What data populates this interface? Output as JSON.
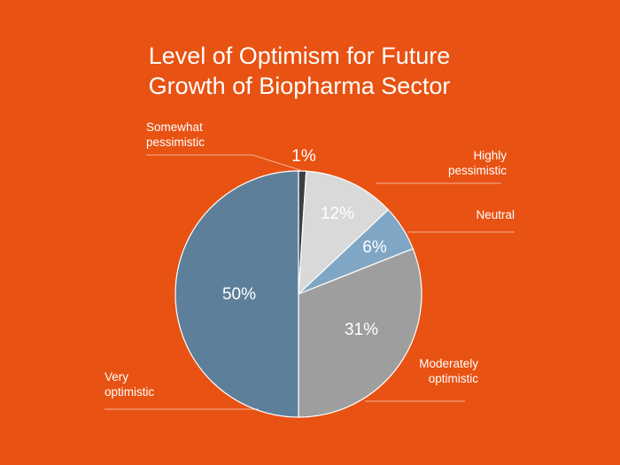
{
  "background": "#E85212",
  "chart_data": {
    "type": "pie",
    "title": [
      "Level of Optimism for Future",
      "Growth of Biopharma Sector"
    ],
    "categories": [
      "Somewhat pessimistic",
      "Highly pessimistic",
      "Neutral",
      "Moderately optimistic",
      "Very optimistic"
    ],
    "values": [
      1,
      12,
      6,
      31,
      50
    ],
    "value_labels": [
      "1%",
      "12%",
      "6%",
      "31%",
      "50%"
    ],
    "category_label_lines": [
      [
        "Somewhat",
        "pessimistic"
      ],
      [
        "Highly",
        "pessimistic"
      ],
      [
        "Neutral"
      ],
      [
        "Moderately",
        "optimistic"
      ],
      [
        "Very",
        "optimistic"
      ]
    ],
    "colors": [
      "#3A3F45",
      "#D9D9D9",
      "#7FA6C4",
      "#9E9E9E",
      "#5E7F9A"
    ],
    "start_angle_deg": 0,
    "direction": "clockwise",
    "legend": "none"
  }
}
